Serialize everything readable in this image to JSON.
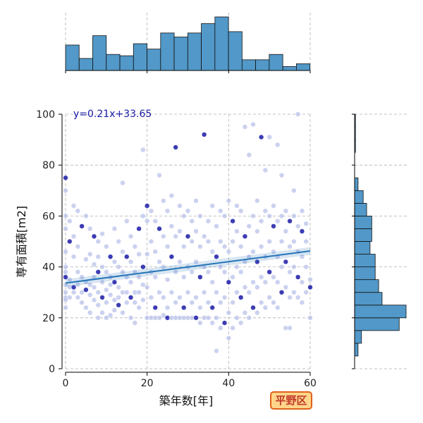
{
  "chart_data": {
    "type": "scatter",
    "xlabel": "築年数[年]",
    "ylabel": "専有面積[m2]",
    "xlim": [
      0,
      60
    ],
    "ylim": [
      0,
      100
    ],
    "x_ticks": [
      0,
      20,
      40,
      60
    ],
    "y_ticks": [
      0,
      20,
      40,
      60,
      80,
      100
    ],
    "grid": true,
    "annotation": "y=0.21x+33.65",
    "regression": {
      "slope": 0.21,
      "intercept": 33.65,
      "ci_halfwidth": 1.5
    },
    "badge": "平野区",
    "colors": {
      "points_light": "#b9c2ea",
      "points_dark": "#1a1aa8",
      "line": "#2575b8",
      "hist_fill": "#5298c8",
      "badge_border": "#e0621c",
      "badge_fill": "#ffd58a",
      "badge_text": "#c0392b"
    },
    "top_histogram": {
      "bin_width": 3.33,
      "x_range": [
        0,
        60
      ],
      "counts": [
        19,
        9,
        26,
        12,
        11,
        20,
        16,
        28,
        25,
        28,
        35,
        40,
        29,
        8,
        8,
        12,
        3,
        5
      ]
    },
    "right_histogram": {
      "bin_edges": [
        5,
        10,
        15,
        20,
        25,
        30,
        35,
        40,
        45,
        50,
        55,
        60,
        65,
        70,
        75,
        80,
        85,
        90,
        95,
        100
      ],
      "counts": [
        2,
        4,
        26,
        30,
        16,
        14,
        12,
        12,
        9,
        10,
        10,
        7,
        5,
        2,
        0,
        0,
        0.5,
        0.5,
        0.5
      ]
    },
    "points": [
      [
        0,
        75
      ],
      [
        0,
        70
      ],
      [
        0,
        60
      ],
      [
        0,
        55
      ],
      [
        0,
        46
      ],
      [
        0,
        40
      ],
      [
        0,
        38
      ],
      [
        0,
        36
      ],
      [
        0,
        33
      ],
      [
        0,
        30
      ],
      [
        0,
        28
      ],
      [
        0,
        27
      ],
      [
        0,
        24
      ],
      [
        1,
        58
      ],
      [
        1,
        50
      ],
      [
        1,
        35
      ],
      [
        1,
        32
      ],
      [
        1,
        28
      ],
      [
        2,
        64
      ],
      [
        2,
        52
      ],
      [
        2,
        44
      ],
      [
        2,
        32
      ],
      [
        2,
        30
      ],
      [
        3,
        62
      ],
      [
        3,
        48
      ],
      [
        3,
        38
      ],
      [
        3,
        33
      ],
      [
        3,
        28
      ],
      [
        4,
        56
      ],
      [
        4,
        36
      ],
      [
        4,
        30
      ],
      [
        4,
        26
      ],
      [
        5,
        60
      ],
      [
        5,
        43
      ],
      [
        5,
        34
      ],
      [
        5,
        31
      ],
      [
        5,
        24
      ],
      [
        6,
        55
      ],
      [
        6,
        45
      ],
      [
        6,
        33
      ],
      [
        6,
        29
      ],
      [
        6,
        22
      ],
      [
        7,
        52
      ],
      [
        7,
        41
      ],
      [
        7,
        36
      ],
      [
        7,
        32
      ],
      [
        7,
        27
      ],
      [
        8,
        50
      ],
      [
        8,
        44
      ],
      [
        8,
        38
      ],
      [
        8,
        30
      ],
      [
        8,
        25
      ],
      [
        8,
        20
      ],
      [
        9,
        53
      ],
      [
        9,
        40
      ],
      [
        9,
        34
      ],
      [
        9,
        28
      ],
      [
        9,
        22
      ],
      [
        10,
        48
      ],
      [
        10,
        38
      ],
      [
        10,
        31
      ],
      [
        10,
        26
      ],
      [
        10,
        20
      ],
      [
        11,
        44
      ],
      [
        11,
        36
      ],
      [
        11,
        33
      ],
      [
        11,
        29
      ],
      [
        11,
        21
      ],
      [
        12,
        55
      ],
      [
        12,
        42
      ],
      [
        12,
        34
      ],
      [
        12,
        27
      ],
      [
        12,
        23
      ],
      [
        13,
        50
      ],
      [
        13,
        40
      ],
      [
        13,
        32
      ],
      [
        13,
        28
      ],
      [
        13,
        25
      ],
      [
        14,
        73
      ],
      [
        14,
        46
      ],
      [
        14,
        38
      ],
      [
        14,
        30
      ],
      [
        14,
        22
      ],
      [
        15,
        58
      ],
      [
        15,
        44
      ],
      [
        15,
        36
      ],
      [
        15,
        30
      ],
      [
        15,
        26
      ],
      [
        16,
        52
      ],
      [
        16,
        42
      ],
      [
        16,
        34
      ],
      [
        16,
        28
      ],
      [
        16,
        20
      ],
      [
        17,
        48
      ],
      [
        17,
        38
      ],
      [
        17,
        30
      ],
      [
        17,
        26
      ],
      [
        17,
        18
      ],
      [
        18,
        55
      ],
      [
        18,
        45
      ],
      [
        18,
        36
      ],
      [
        18,
        30
      ],
      [
        18,
        24
      ],
      [
        19,
        86
      ],
      [
        19,
        60
      ],
      [
        19,
        40
      ],
      [
        19,
        33
      ],
      [
        19,
        27
      ],
      [
        20,
        20
      ],
      [
        20,
        32
      ],
      [
        20,
        45
      ],
      [
        20,
        58
      ],
      [
        20,
        64
      ],
      [
        21,
        20
      ],
      [
        21,
        28
      ],
      [
        21,
        38
      ],
      [
        21,
        50
      ],
      [
        21,
        62
      ],
      [
        22,
        20
      ],
      [
        22,
        24
      ],
      [
        22,
        36
      ],
      [
        22,
        46
      ],
      [
        22,
        58
      ],
      [
        23,
        20
      ],
      [
        23,
        30
      ],
      [
        23,
        42
      ],
      [
        23,
        55
      ],
      [
        23,
        76
      ],
      [
        24,
        21
      ],
      [
        24,
        28
      ],
      [
        24,
        40
      ],
      [
        24,
        52
      ],
      [
        24,
        66
      ],
      [
        25,
        20
      ],
      [
        25,
        24
      ],
      [
        25,
        35
      ],
      [
        25,
        48
      ],
      [
        25,
        62
      ],
      [
        26,
        20
      ],
      [
        26,
        30
      ],
      [
        26,
        44
      ],
      [
        26,
        56
      ],
      [
        26,
        68
      ],
      [
        27,
        20
      ],
      [
        27,
        26
      ],
      [
        27,
        38
      ],
      [
        27,
        52
      ],
      [
        27,
        87
      ],
      [
        28,
        20
      ],
      [
        28,
        28
      ],
      [
        28,
        42
      ],
      [
        28,
        54
      ],
      [
        28,
        64
      ],
      [
        29,
        20
      ],
      [
        29,
        24
      ],
      [
        29,
        36
      ],
      [
        29,
        48
      ],
      [
        29,
        60
      ],
      [
        30,
        20
      ],
      [
        30,
        30
      ],
      [
        30,
        40
      ],
      [
        30,
        52
      ],
      [
        30,
        62
      ],
      [
        31,
        20
      ],
      [
        31,
        26
      ],
      [
        31,
        38
      ],
      [
        31,
        50
      ],
      [
        31,
        58
      ],
      [
        32,
        20
      ],
      [
        32,
        28
      ],
      [
        32,
        42
      ],
      [
        32,
        54
      ],
      [
        32,
        66
      ],
      [
        33,
        18
      ],
      [
        33,
        24
      ],
      [
        33,
        36
      ],
      [
        33,
        48
      ],
      [
        33,
        60
      ],
      [
        34,
        20
      ],
      [
        34,
        30
      ],
      [
        34,
        40
      ],
      [
        34,
        52
      ],
      [
        34,
        92
      ],
      [
        35,
        20
      ],
      [
        35,
        26
      ],
      [
        35,
        38
      ],
      [
        35,
        50
      ],
      [
        35,
        58
      ],
      [
        36,
        18
      ],
      [
        36,
        24
      ],
      [
        36,
        34
      ],
      [
        36,
        46
      ],
      [
        36,
        64
      ],
      [
        37,
        7
      ],
      [
        37,
        20
      ],
      [
        37,
        30
      ],
      [
        37,
        44
      ],
      [
        37,
        56
      ],
      [
        38,
        16
      ],
      [
        38,
        26
      ],
      [
        38,
        40
      ],
      [
        38,
        50
      ],
      [
        38,
        62
      ],
      [
        39,
        18
      ],
      [
        39,
        28
      ],
      [
        39,
        38
      ],
      [
        39,
        48
      ],
      [
        39,
        60
      ],
      [
        40,
        12
      ],
      [
        40,
        22
      ],
      [
        40,
        34
      ],
      [
        40,
        46
      ],
      [
        40,
        66
      ],
      [
        41,
        16
      ],
      [
        41,
        26
      ],
      [
        41,
        36
      ],
      [
        41,
        50
      ],
      [
        41,
        58
      ],
      [
        42,
        20
      ],
      [
        42,
        30
      ],
      [
        42,
        40
      ],
      [
        42,
        54
      ],
      [
        42,
        64
      ],
      [
        43,
        18
      ],
      [
        43,
        28
      ],
      [
        43,
        38
      ],
      [
        43,
        48
      ],
      [
        43,
        62
      ],
      [
        44,
        22
      ],
      [
        44,
        32
      ],
      [
        44,
        42
      ],
      [
        44,
        52
      ],
      [
        44,
        95
      ],
      [
        45,
        20
      ],
      [
        45,
        30
      ],
      [
        45,
        44
      ],
      [
        45,
        56
      ],
      [
        45,
        84
      ],
      [
        46,
        24
      ],
      [
        46,
        34
      ],
      [
        46,
        46
      ],
      [
        46,
        60
      ],
      [
        46,
        96
      ],
      [
        47,
        22
      ],
      [
        47,
        32
      ],
      [
        47,
        42
      ],
      [
        47,
        54
      ],
      [
        47,
        66
      ],
      [
        48,
        26
      ],
      [
        48,
        36
      ],
      [
        48,
        48
      ],
      [
        48,
        58
      ],
      [
        48,
        91
      ],
      [
        49,
        24
      ],
      [
        49,
        34
      ],
      [
        49,
        44
      ],
      [
        49,
        62
      ],
      [
        49,
        78
      ],
      [
        50,
        28
      ],
      [
        50,
        38
      ],
      [
        50,
        50
      ],
      [
        50,
        60
      ],
      [
        50,
        91
      ],
      [
        51,
        26
      ],
      [
        51,
        36
      ],
      [
        51,
        46
      ],
      [
        51,
        56
      ],
      [
        51,
        64
      ],
      [
        52,
        24
      ],
      [
        52,
        34
      ],
      [
        52,
        44
      ],
      [
        52,
        58
      ],
      [
        52,
        88
      ],
      [
        53,
        30
      ],
      [
        53,
        40
      ],
      [
        53,
        50
      ],
      [
        53,
        60
      ],
      [
        53,
        76
      ],
      [
        54,
        16
      ],
      [
        54,
        32
      ],
      [
        54,
        42
      ],
      [
        54,
        54
      ],
      [
        54,
        62
      ],
      [
        55,
        16
      ],
      [
        55,
        28
      ],
      [
        55,
        38
      ],
      [
        55,
        48
      ],
      [
        55,
        58
      ],
      [
        56,
        30
      ],
      [
        56,
        40
      ],
      [
        56,
        50
      ],
      [
        56,
        60
      ],
      [
        56,
        70
      ],
      [
        57,
        28
      ],
      [
        57,
        36
      ],
      [
        57,
        46
      ],
      [
        57,
        56
      ],
      [
        57,
        100
      ],
      [
        58,
        26
      ],
      [
        58,
        34
      ],
      [
        58,
        44
      ],
      [
        58,
        54
      ],
      [
        58,
        62
      ],
      [
        59,
        30
      ],
      [
        59,
        40
      ],
      [
        59,
        50
      ],
      [
        59,
        57
      ],
      [
        60,
        20
      ],
      [
        60,
        32
      ],
      [
        60,
        35
      ]
    ]
  }
}
